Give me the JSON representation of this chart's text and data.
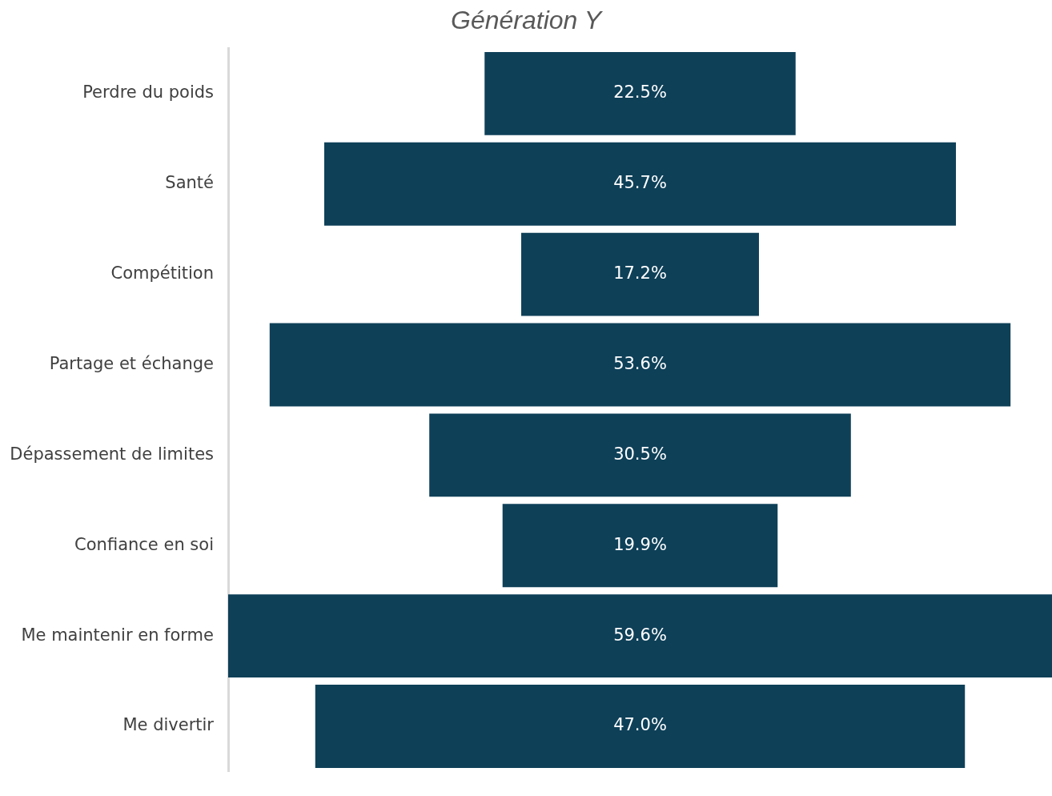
{
  "chart_data": {
    "type": "other",
    "title": "Génération Y",
    "categories": [
      "Perdre du poids",
      "Santé",
      "Compétition",
      "Partage et échange",
      "Dépassement de limites",
      "Confiance en soi",
      "Me maintenir en forme",
      "Me divertir"
    ],
    "values": [
      22.5,
      45.7,
      17.2,
      53.6,
      30.5,
      19.9,
      59.6,
      47.0
    ],
    "value_labels": [
      "22.5%",
      "45.7%",
      "17.2%",
      "53.6%",
      "30.5%",
      "19.9%",
      "59.6%",
      "47.0%"
    ],
    "color": "#0e4058"
  }
}
